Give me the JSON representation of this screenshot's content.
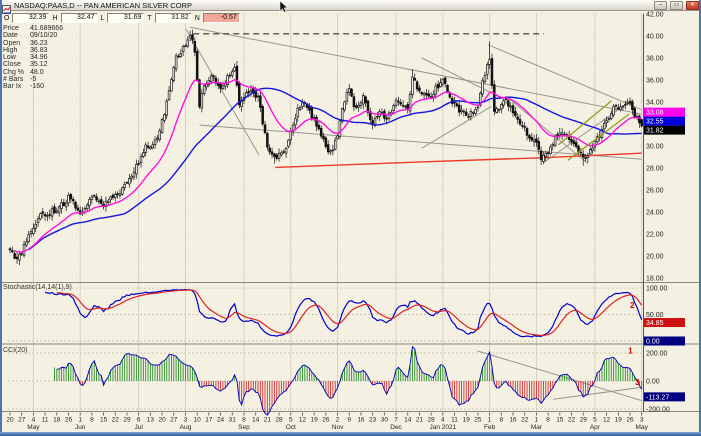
{
  "window": {
    "title": "NASDAQ:PAAS,D -- PAN AMERICAN SILVER CORP",
    "glyph_minimize": "–",
    "glyph_maximize": "▭",
    "glyph_close": "✕"
  },
  "quote_bar": {
    "fields": [
      {
        "label": "O",
        "value": "32.39",
        "negative": false
      },
      {
        "label": "H",
        "value": "32.47",
        "negative": false
      },
      {
        "label": "L",
        "value": "31.69",
        "negative": false
      },
      {
        "label": "T",
        "value": "31.82",
        "negative": false
      },
      {
        "label": "N",
        "value": "-0.57",
        "negative": true
      }
    ]
  },
  "info_panel": {
    "rows": [
      {
        "label": "Price",
        "value": "41.689666"
      },
      {
        "label": "Date",
        "value": "09/10/20"
      },
      {
        "label": "Open",
        "value": "36.23"
      },
      {
        "label": "High",
        "value": "36.83"
      },
      {
        "label": "Low",
        "value": "34.96"
      },
      {
        "label": "Close",
        "value": "35.12"
      },
      {
        "label": "Chg %",
        "value": "48.0"
      },
      {
        "label": "# Bars",
        "value": "-5"
      },
      {
        "label": "Bar Ix",
        "value": "-160"
      }
    ]
  },
  "chart_data": {
    "type": "candlestick",
    "symbol": "NASDAQ:PAAS",
    "timeframe": "D",
    "price_axis": {
      "min": 18,
      "max": 42,
      "step": 2,
      "hidden_label": 32
    },
    "last_price_tags": [
      {
        "value": "33.08",
        "color": "#ff00ee"
      },
      {
        "value": "32.55",
        "color": "#0000dd"
      },
      {
        "value": "31.82",
        "color": "#000000"
      }
    ],
    "last_bar": {
      "open": 32.39,
      "high": 32.47,
      "low": 31.69,
      "close": 31.82
    },
    "close_anchors": [
      [
        0,
        20.4
      ],
      [
        0.011,
        19.6
      ],
      [
        0.03,
        21.8
      ],
      [
        0.048,
        23.6
      ],
      [
        0.074,
        24.2
      ],
      [
        0.093,
        25.3
      ],
      [
        0.111,
        23.9
      ],
      [
        0.13,
        25.4
      ],
      [
        0.148,
        24.6
      ],
      [
        0.18,
        26.2
      ],
      [
        0.194,
        27.3
      ],
      [
        0.213,
        29.8
      ],
      [
        0.23,
        30.3
      ],
      [
        0.246,
        33.2
      ],
      [
        0.261,
        37.8
      ],
      [
        0.272,
        38.6
      ],
      [
        0.285,
        40.1
      ],
      [
        0.291,
        39.3
      ],
      [
        0.3,
        33.8
      ],
      [
        0.307,
        35.4
      ],
      [
        0.319,
        36.6
      ],
      [
        0.333,
        35.2
      ],
      [
        0.356,
        37.1
      ],
      [
        0.363,
        33.9
      ],
      [
        0.378,
        35.1
      ],
      [
        0.393,
        34.3
      ],
      [
        0.407,
        30.2
      ],
      [
        0.417,
        28.9
      ],
      [
        0.433,
        29.4
      ],
      [
        0.448,
        31.9
      ],
      [
        0.456,
        33.4
      ],
      [
        0.467,
        33.8
      ],
      [
        0.481,
        32.3
      ],
      [
        0.493,
        31.0
      ],
      [
        0.506,
        29.1
      ],
      [
        0.519,
        31.0
      ],
      [
        0.526,
        33.6
      ],
      [
        0.537,
        35.2
      ],
      [
        0.546,
        33.5
      ],
      [
        0.559,
        34.4
      ],
      [
        0.574,
        31.9
      ],
      [
        0.585,
        33.2
      ],
      [
        0.594,
        32.2
      ],
      [
        0.613,
        34.3
      ],
      [
        0.63,
        33.3
      ],
      [
        0.637,
        36.3
      ],
      [
        0.648,
        34.8
      ],
      [
        0.667,
        34.6
      ],
      [
        0.685,
        36.1
      ],
      [
        0.696,
        34.3
      ],
      [
        0.707,
        33.5
      ],
      [
        0.722,
        32.7
      ],
      [
        0.739,
        33.3
      ],
      [
        0.746,
        35.3
      ],
      [
        0.759,
        38.2
      ],
      [
        0.767,
        32.9
      ],
      [
        0.783,
        34.4
      ],
      [
        0.798,
        33.0
      ],
      [
        0.807,
        32.2
      ],
      [
        0.822,
        30.8
      ],
      [
        0.833,
        30.2
      ],
      [
        0.841,
        28.9
      ],
      [
        0.856,
        29.8
      ],
      [
        0.863,
        30.9
      ],
      [
        0.876,
        31.1
      ],
      [
        0.891,
        30.4
      ],
      [
        0.909,
        28.7
      ],
      [
        0.926,
        30.3
      ],
      [
        0.937,
        31.6
      ],
      [
        0.95,
        32.6
      ],
      [
        0.956,
        33.6
      ],
      [
        0.963,
        33.1
      ],
      [
        0.98,
        34.0
      ],
      [
        0.989,
        32.6
      ],
      [
        1,
        31.82
      ]
    ],
    "wick_events": [
      {
        "t": 0.285,
        "high": 40.5
      },
      {
        "t": 0.759,
        "high": 39.5
      },
      {
        "t": 0.637,
        "high": 37.0
      },
      {
        "t": 0.417,
        "low": 28.4
      },
      {
        "t": 0.909,
        "low": 28.2
      }
    ],
    "ma200_anchors": [
      [
        0.42,
        28.05
      ],
      [
        0.65,
        28.55
      ],
      [
        0.85,
        28.95
      ],
      [
        1.0,
        29.35
      ]
    ],
    "annotations": {
      "dashed": [
        [
          0.29,
          40.2,
          0.845,
          40.2
        ]
      ],
      "gray": [
        [
          0.285,
          40.8,
          1.0,
          32.9
        ],
        [
          0.279,
          40.6,
          0.394,
          29.2
        ],
        [
          0.3,
          31.9,
          1.0,
          28.8
        ],
        [
          0.652,
          38.0,
          0.78,
          34.3
        ],
        [
          0.652,
          29.8,
          0.762,
          33.6
        ],
        [
          0.757,
          39.2,
          1.0,
          33.3
        ],
        [
          0.79,
          34.3,
          0.915,
          28.4
        ],
        [
          0.845,
          28.5,
          0.985,
          34.2
        ]
      ],
      "olive": [
        [
          0.868,
          30.1,
          0.952,
          34.1
        ],
        [
          0.883,
          28.7,
          0.98,
          32.9
        ]
      ],
      "cci_gray": [
        [
          0.74,
          215,
          1.0,
          -140
        ],
        [
          0.86,
          -130,
          1.0,
          -45
        ]
      ],
      "markers": [
        {
          "text": "2",
          "panel": "stoch",
          "t": 0.985,
          "v": 62
        },
        {
          "text": "1",
          "panel": "cci",
          "t": 0.982,
          "v": 195
        },
        {
          "text": "3",
          "panel": "cci",
          "t": 0.993,
          "v": -30
        }
      ]
    },
    "stoch": {
      "label": "Stochastic(14,14(1),9)",
      "axis_labels": [
        "100.00",
        "50.00"
      ],
      "tags": [
        {
          "value": "34.85",
          "v": 34.85,
          "color": "#cc1111"
        },
        {
          "value": "0.00",
          "v": 0,
          "color": "#000080"
        }
      ]
    },
    "cci": {
      "label": "CCI(20)",
      "axis_labels": [
        {
          "text": "200.00",
          "v": 200
        },
        {
          "text": "0.00",
          "v": 0
        },
        {
          "text": "-200.00",
          "v": -200
        }
      ],
      "tags": [
        {
          "value": "-113.27",
          "v": -113.27,
          "color": "#000080"
        }
      ]
    },
    "x_axis": {
      "week_ticks": [
        "20",
        "27",
        "4",
        "11",
        "18",
        "26",
        "1",
        "8",
        "15",
        "22",
        "29",
        "6",
        "13",
        "20",
        "27",
        "3",
        "10",
        "17",
        "24",
        "31",
        "8",
        "14",
        "21",
        "28",
        "5",
        "12",
        "19",
        "26",
        "2",
        "9",
        "16",
        "23",
        "30",
        "7",
        "14",
        "21",
        "28",
        "4",
        "11",
        "19",
        "25",
        "1",
        "8",
        "16",
        "22",
        "1",
        "8",
        "15",
        "22",
        "29",
        "5",
        "12",
        "19",
        "26",
        "3"
      ],
      "months": [
        {
          "label": "May",
          "n": 2
        },
        {
          "label": "Jun",
          "n": 6
        },
        {
          "label": "Jul",
          "n": 11
        },
        {
          "label": "Aug",
          "n": 15
        },
        {
          "label": "Sep",
          "n": 20
        },
        {
          "label": "Oct",
          "n": 24
        },
        {
          "label": "Nov",
          "n": 28
        },
        {
          "label": "Dec",
          "n": 33
        },
        {
          "label": "Jan 2021",
          "n": 37
        },
        {
          "label": "Feb",
          "n": 41
        },
        {
          "label": "Mar",
          "n": 45
        },
        {
          "label": "Apr",
          "n": 50
        },
        {
          "label": "May",
          "n": 54
        }
      ]
    },
    "colors": {
      "background": "#f5f1e2",
      "candle": "#111111",
      "ema_fast": "#ff10e0",
      "sma_slow": "#1515dd",
      "ma_long": "#f03828",
      "stoch_fast": "#0000cc",
      "stoch_slow": "#dd2222",
      "cci_pos": "#2a8f2a",
      "cci_neg": "#d03030",
      "cci_line": "#0000b8",
      "grid": "#d6d1c0",
      "annotation": "#979790",
      "olive": "#9a9a20",
      "marker": "#e00000"
    }
  }
}
